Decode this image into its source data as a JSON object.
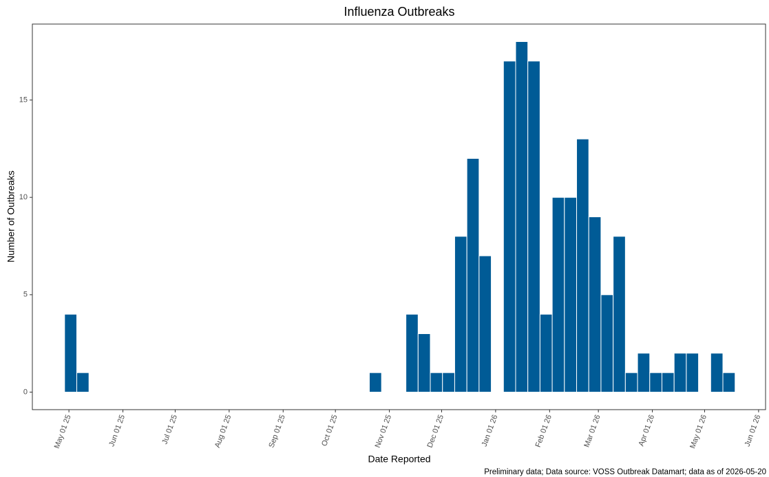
{
  "chart_data": {
    "type": "bar",
    "title": "Influenza Outbreaks",
    "x_label": "Date Reported",
    "y_label": "Number of Outbreaks",
    "caption": "Preliminary data; Data source: VOSS Outbreak Datamart; data as of 2026-05-20",
    "x": [
      "2025-05-02",
      "2025-05-09",
      "2025-10-24",
      "2025-11-14",
      "2025-11-21",
      "2025-11-28",
      "2025-12-05",
      "2025-12-12",
      "2025-12-19",
      "2025-12-26",
      "2026-01-09",
      "2026-01-16",
      "2026-01-23",
      "2026-01-30",
      "2026-02-06",
      "2026-02-13",
      "2026-02-20",
      "2026-02-27",
      "2026-03-06",
      "2026-03-13",
      "2026-03-20",
      "2026-03-27",
      "2026-04-03",
      "2026-04-10",
      "2026-04-17",
      "2026-04-24",
      "2026-05-08",
      "2026-05-15"
    ],
    "values": [
      4,
      1,
      1,
      4,
      3,
      1,
      1,
      8,
      12,
      7,
      17,
      18,
      17,
      4,
      10,
      10,
      13,
      9,
      5,
      8,
      1,
      2,
      1,
      1,
      2,
      2,
      2,
      1
    ],
    "color": "#005b96",
    "xlim": [
      "2025-04-10",
      "2026-06-05"
    ],
    "xticks": [
      {
        "value": "2025-05-01",
        "label": "May 01 25"
      },
      {
        "value": "2025-06-01",
        "label": "Jun 01 25"
      },
      {
        "value": "2025-07-01",
        "label": "Jul 01 25"
      },
      {
        "value": "2025-08-01",
        "label": "Aug 01 25"
      },
      {
        "value": "2025-09-01",
        "label": "Sep 01 25"
      },
      {
        "value": "2025-10-01",
        "label": "Oct 01 25"
      },
      {
        "value": "2025-11-01",
        "label": "Nov 01 25"
      },
      {
        "value": "2025-12-01",
        "label": "Dec 01 25"
      },
      {
        "value": "2026-01-01",
        "label": "Jan 01 26"
      },
      {
        "value": "2026-02-01",
        "label": "Feb 01 26"
      },
      {
        "value": "2026-03-01",
        "label": "Mar 01 26"
      },
      {
        "value": "2026-04-01",
        "label": "Apr 01 26"
      },
      {
        "value": "2026-05-01",
        "label": "May 01 26"
      },
      {
        "value": "2026-06-01",
        "label": "Jun 01 26"
      }
    ],
    "ylim": [
      -0.9,
      18.9
    ],
    "yticks": [
      0,
      5,
      10,
      15
    ],
    "grid": false
  }
}
